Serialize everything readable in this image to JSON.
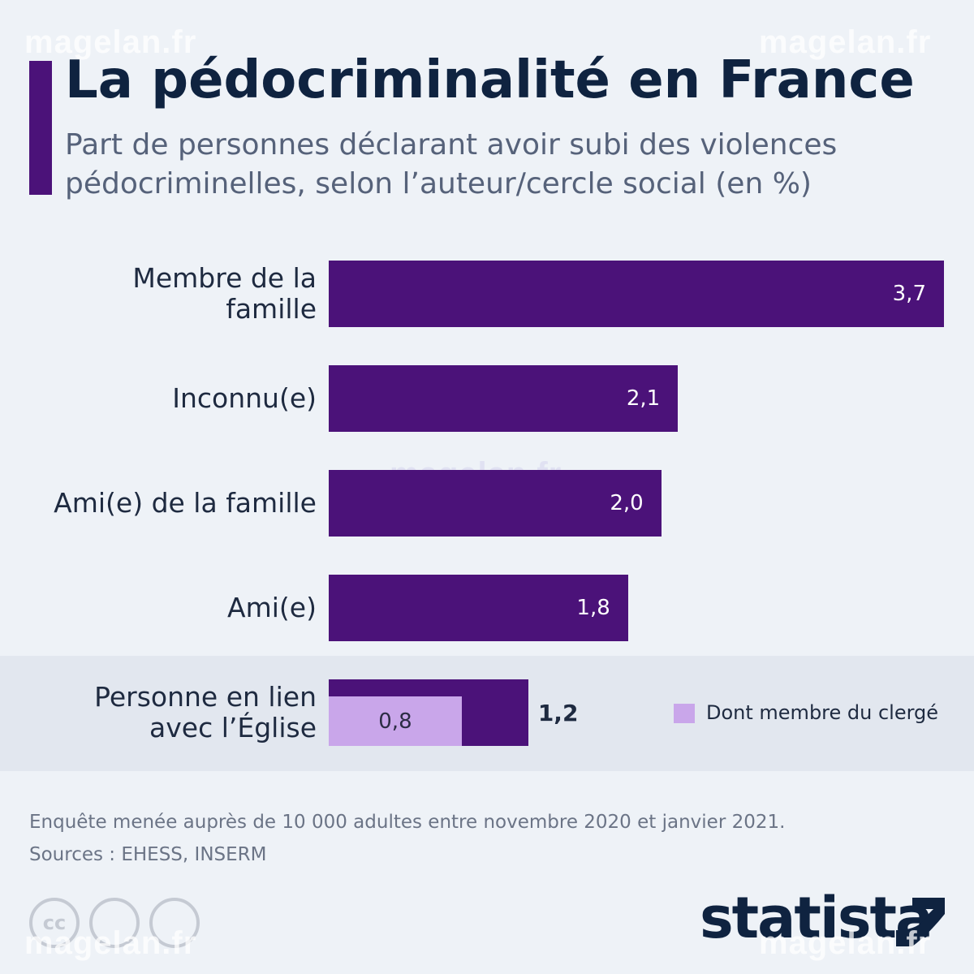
{
  "chart_data": {
    "type": "bar",
    "orientation": "horizontal",
    "title": "La pédocriminalité en France",
    "subtitle": "Part de personnes déclarant avoir subi des violences pédocriminelles, selon l’auteur/cercle social (en %)",
    "categories": [
      "Membre de la famille",
      "Inconnu(e)",
      "Ami(e) de la famille",
      "Ami(e)",
      "Personne en lien avec l’Église"
    ],
    "series": [
      {
        "name": null,
        "color": "#4b1279",
        "values": [
          3.7,
          2.1,
          2.0,
          1.8,
          1.2
        ],
        "value_labels": [
          "3,7",
          "2,1",
          "2,0",
          "1,8",
          "1,2"
        ]
      },
      {
        "name": "Dont membre du clergé",
        "color": "#c9a6ea",
        "values": [
          null,
          null,
          null,
          null,
          0.8
        ],
        "value_labels": [
          null,
          null,
          null,
          null,
          "0,8"
        ]
      }
    ],
    "xlim": [
      0,
      3.7
    ],
    "highlight_category": 4
  },
  "footer": {
    "note": "Enquête menée auprès de 10 000 adultes entre novembre 2020 et janvier 2021.",
    "source": "Sources : EHESS, INSERM",
    "logo": "statista",
    "license": "cc"
  },
  "watermark": "magelan.fr"
}
